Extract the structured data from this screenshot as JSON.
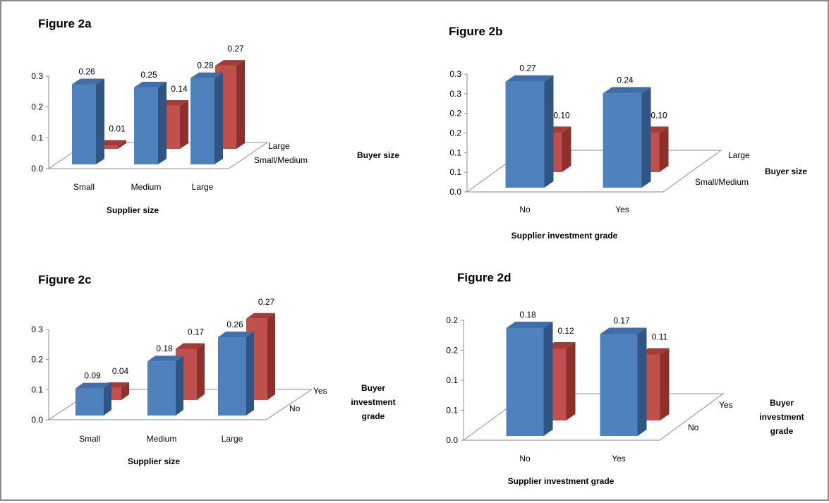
{
  "colors": {
    "front": {
      "base": "#4f81bd",
      "top": "#3e6eab",
      "side": "#2f5585"
    },
    "back": {
      "base": "#c0504d",
      "top": "#a83a36",
      "side": "#8e2f2c"
    },
    "axis": "#8c8c8c"
  },
  "chart_data": [
    {
      "id": "fig2a",
      "type": "bar",
      "title": "Figure 2a",
      "categories": [
        "Small",
        "Medium",
        "Large"
      ],
      "ytick_labels": [
        "0.0",
        "0.1",
        "0.2",
        "0.3"
      ],
      "xlabel": "Supplier size",
      "depth_label": "Buyer size",
      "depth_categories": [
        "Small/Medium",
        "Large"
      ],
      "series": [
        {
          "name": "Small/Medium",
          "values": [
            0.26,
            0.25,
            0.28
          ],
          "labels": [
            "0.26",
            "0.25",
            "0.28"
          ]
        },
        {
          "name": "Large",
          "values": [
            0.01,
            0.14,
            0.27
          ],
          "labels": [
            "0.01",
            "0.14",
            "0.27"
          ]
        }
      ]
    },
    {
      "id": "fig2b",
      "type": "bar",
      "title": "Figure 2b",
      "categories": [
        "No",
        "Yes"
      ],
      "ytick_labels": [
        "0.0",
        "0.1",
        "0.1",
        "0.2",
        "0.2",
        "0.3",
        "0.3"
      ],
      "xlabel": "Supplier investment grade",
      "depth_label": "Buyer size",
      "depth_categories": [
        "Small/Medium",
        "Large"
      ],
      "series": [
        {
          "name": "Small/Medium",
          "values": [
            0.27,
            0.24
          ],
          "labels": [
            "0.27",
            "0.24"
          ]
        },
        {
          "name": "Large",
          "values": [
            0.1,
            0.1
          ],
          "labels": [
            "0.10",
            "0.10"
          ]
        }
      ]
    },
    {
      "id": "fig2c",
      "type": "bar",
      "title": "Figure 2c",
      "categories": [
        "Small",
        "Medium",
        "Large"
      ],
      "ytick_labels": [
        "0.0",
        "0.1",
        "0.2",
        "0.3"
      ],
      "xlabel": "Supplier size",
      "depth_label": "Buyer investment grade",
      "depth_categories": [
        "No",
        "Yes"
      ],
      "series": [
        {
          "name": "No",
          "values": [
            0.09,
            0.18,
            0.26
          ],
          "labels": [
            "0.09",
            "0.18",
            "0.26"
          ]
        },
        {
          "name": "Yes",
          "values": [
            0.04,
            0.17,
            0.27
          ],
          "labels": [
            "0.04",
            "0.17",
            "0.27"
          ]
        }
      ]
    },
    {
      "id": "fig2d",
      "type": "bar",
      "title": "Figure 2d",
      "categories": [
        "No",
        "Yes"
      ],
      "ytick_labels": [
        "0.0",
        "0.1",
        "0.1",
        "0.2",
        "0.2"
      ],
      "xlabel": "Supplier investment grade",
      "depth_label": "Buyer investment grade",
      "depth_categories": [
        "No",
        "Yes"
      ],
      "series": [
        {
          "name": "No",
          "values": [
            0.18,
            0.17
          ],
          "labels": [
            "0.18",
            "0.17"
          ]
        },
        {
          "name": "Yes",
          "values": [
            0.12,
            0.11
          ],
          "labels": [
            "0.12",
            "0.11"
          ]
        }
      ]
    }
  ]
}
